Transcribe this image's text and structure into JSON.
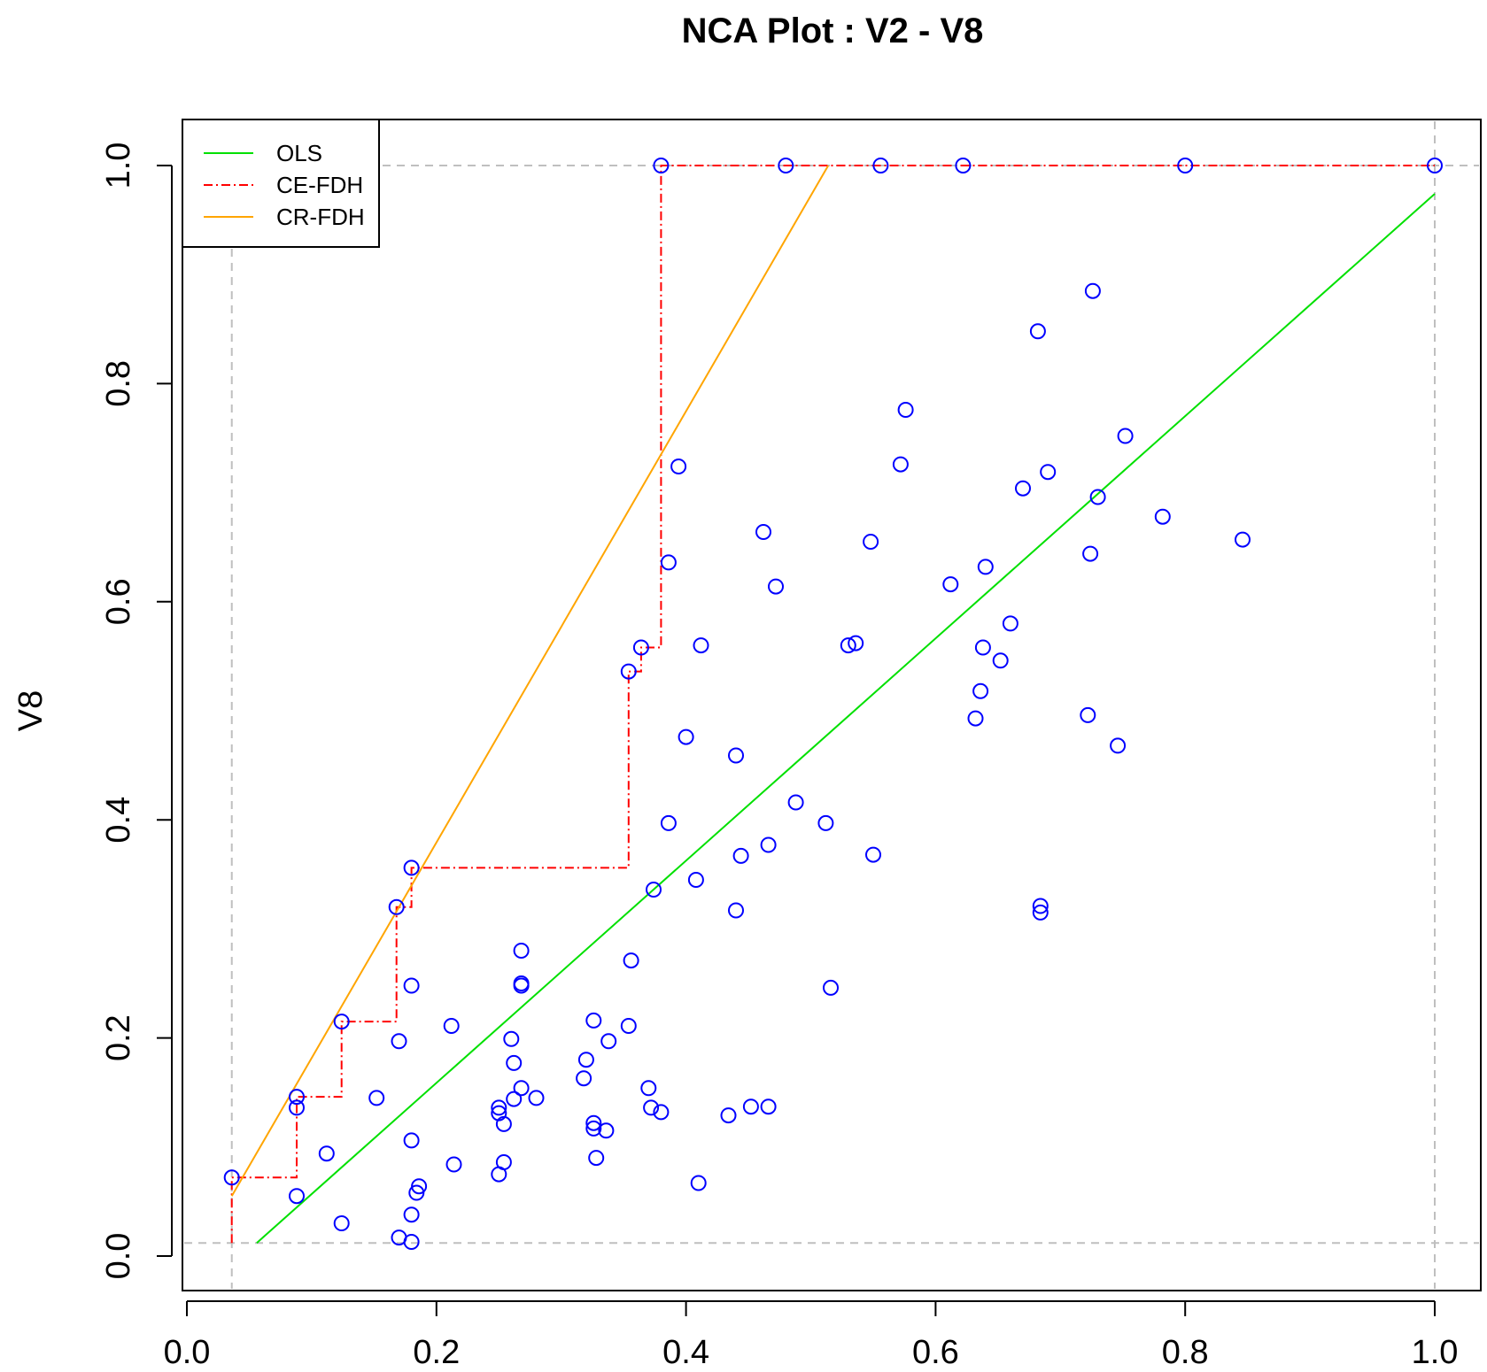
{
  "chart_data": {
    "type": "scatter",
    "title": "NCA Plot : V2 - V8",
    "xlabel": "",
    "ylabel": "V8",
    "xlim": [
      0.0,
      1.0
    ],
    "ylim": [
      0.0,
      1.0
    ],
    "x_ticks": [
      "0.0",
      "0.2",
      "0.4",
      "0.6",
      "0.8",
      "1.0"
    ],
    "y_ticks": [
      "0.0",
      "0.2",
      "0.4",
      "0.6",
      "0.8",
      "1.0"
    ],
    "grid": false,
    "legend_position": "top-left",
    "reference_lines": {
      "x": [
        0.036,
        1.0
      ],
      "y": [
        0.012,
        1.0
      ],
      "color": "#bfbfbf",
      "style": "dashed"
    },
    "series": [
      {
        "name": "points",
        "kind": "scatter",
        "marker": "open-circle",
        "color": "#0000ff",
        "points": [
          [
            0.036,
            0.072
          ],
          [
            0.088,
            0.146
          ],
          [
            0.088,
            0.136
          ],
          [
            0.088,
            0.055
          ],
          [
            0.112,
            0.094
          ],
          [
            0.124,
            0.215
          ],
          [
            0.124,
            0.03
          ],
          [
            0.152,
            0.145
          ],
          [
            0.168,
            0.32
          ],
          [
            0.17,
            0.197
          ],
          [
            0.17,
            0.017
          ],
          [
            0.18,
            0.356
          ],
          [
            0.18,
            0.248
          ],
          [
            0.18,
            0.106
          ],
          [
            0.18,
            0.038
          ],
          [
            0.18,
            0.013
          ],
          [
            0.184,
            0.058
          ],
          [
            0.186,
            0.064
          ],
          [
            0.212,
            0.211
          ],
          [
            0.214,
            0.084
          ],
          [
            0.25,
            0.136
          ],
          [
            0.25,
            0.131
          ],
          [
            0.25,
            0.075
          ],
          [
            0.254,
            0.121
          ],
          [
            0.254,
            0.086
          ],
          [
            0.26,
            0.199
          ],
          [
            0.262,
            0.177
          ],
          [
            0.262,
            0.144
          ],
          [
            0.268,
            0.28
          ],
          [
            0.268,
            0.25
          ],
          [
            0.268,
            0.248
          ],
          [
            0.268,
            0.154
          ],
          [
            0.28,
            0.145
          ],
          [
            0.318,
            0.163
          ],
          [
            0.32,
            0.18
          ],
          [
            0.326,
            0.216
          ],
          [
            0.326,
            0.122
          ],
          [
            0.326,
            0.117
          ],
          [
            0.328,
            0.09
          ],
          [
            0.336,
            0.115
          ],
          [
            0.338,
            0.197
          ],
          [
            0.354,
            0.536
          ],
          [
            0.354,
            0.211
          ],
          [
            0.356,
            0.271
          ],
          [
            0.364,
            0.558
          ],
          [
            0.37,
            0.154
          ],
          [
            0.372,
            0.136
          ],
          [
            0.374,
            0.336
          ],
          [
            0.38,
            1.0
          ],
          [
            0.38,
            0.132
          ],
          [
            0.386,
            0.636
          ],
          [
            0.386,
            0.397
          ],
          [
            0.394,
            0.724
          ],
          [
            0.4,
            0.476
          ],
          [
            0.408,
            0.345
          ],
          [
            0.41,
            0.067
          ],
          [
            0.412,
            0.56
          ],
          [
            0.434,
            0.129
          ],
          [
            0.44,
            0.459
          ],
          [
            0.44,
            0.317
          ],
          [
            0.444,
            0.367
          ],
          [
            0.452,
            0.137
          ],
          [
            0.462,
            0.664
          ],
          [
            0.466,
            0.377
          ],
          [
            0.466,
            0.137
          ],
          [
            0.472,
            0.614
          ],
          [
            0.48,
            1.0
          ],
          [
            0.488,
            0.416
          ],
          [
            0.512,
            0.397
          ],
          [
            0.516,
            0.246
          ],
          [
            0.53,
            0.56
          ],
          [
            0.536,
            0.562
          ],
          [
            0.548,
            0.655
          ],
          [
            0.55,
            0.368
          ],
          [
            0.556,
            1.0
          ],
          [
            0.572,
            0.726
          ],
          [
            0.576,
            0.776
          ],
          [
            0.612,
            0.616
          ],
          [
            0.622,
            1.0
          ],
          [
            0.632,
            0.493
          ],
          [
            0.636,
            0.518
          ],
          [
            0.638,
            0.558
          ],
          [
            0.64,
            0.632
          ],
          [
            0.652,
            0.546
          ],
          [
            0.66,
            0.58
          ],
          [
            0.67,
            0.704
          ],
          [
            0.682,
            0.848
          ],
          [
            0.684,
            0.321
          ],
          [
            0.684,
            0.315
          ],
          [
            0.69,
            0.719
          ],
          [
            0.722,
            0.496
          ],
          [
            0.724,
            0.644
          ],
          [
            0.726,
            0.885
          ],
          [
            0.73,
            0.696
          ],
          [
            0.746,
            0.468
          ],
          [
            0.752,
            0.752
          ],
          [
            0.782,
            0.678
          ],
          [
            0.8,
            1.0
          ],
          [
            0.846,
            0.657
          ],
          [
            1.0,
            1.0
          ]
        ]
      },
      {
        "name": "OLS",
        "kind": "line",
        "color": "#00e000",
        "dash": "solid",
        "points": [
          [
            0.056,
            0.012
          ],
          [
            1.0,
            0.974
          ]
        ]
      },
      {
        "name": "CE-FDH",
        "kind": "line",
        "color": "#ff0000",
        "dash": "dashdot",
        "points": [
          [
            0.036,
            0.012
          ],
          [
            0.036,
            0.072
          ],
          [
            0.088,
            0.072
          ],
          [
            0.088,
            0.146
          ],
          [
            0.124,
            0.146
          ],
          [
            0.124,
            0.215
          ],
          [
            0.168,
            0.215
          ],
          [
            0.168,
            0.32
          ],
          [
            0.18,
            0.32
          ],
          [
            0.18,
            0.356
          ],
          [
            0.354,
            0.356
          ],
          [
            0.354,
            0.536
          ],
          [
            0.364,
            0.536
          ],
          [
            0.364,
            0.558
          ],
          [
            0.38,
            0.558
          ],
          [
            0.38,
            1.0
          ],
          [
            1.0,
            1.0
          ]
        ]
      },
      {
        "name": "CR-FDH",
        "kind": "line",
        "color": "#ffa500",
        "dash": "solid",
        "points": [
          [
            0.036,
            0.055
          ],
          [
            0.514,
            1.0
          ]
        ]
      }
    ]
  }
}
